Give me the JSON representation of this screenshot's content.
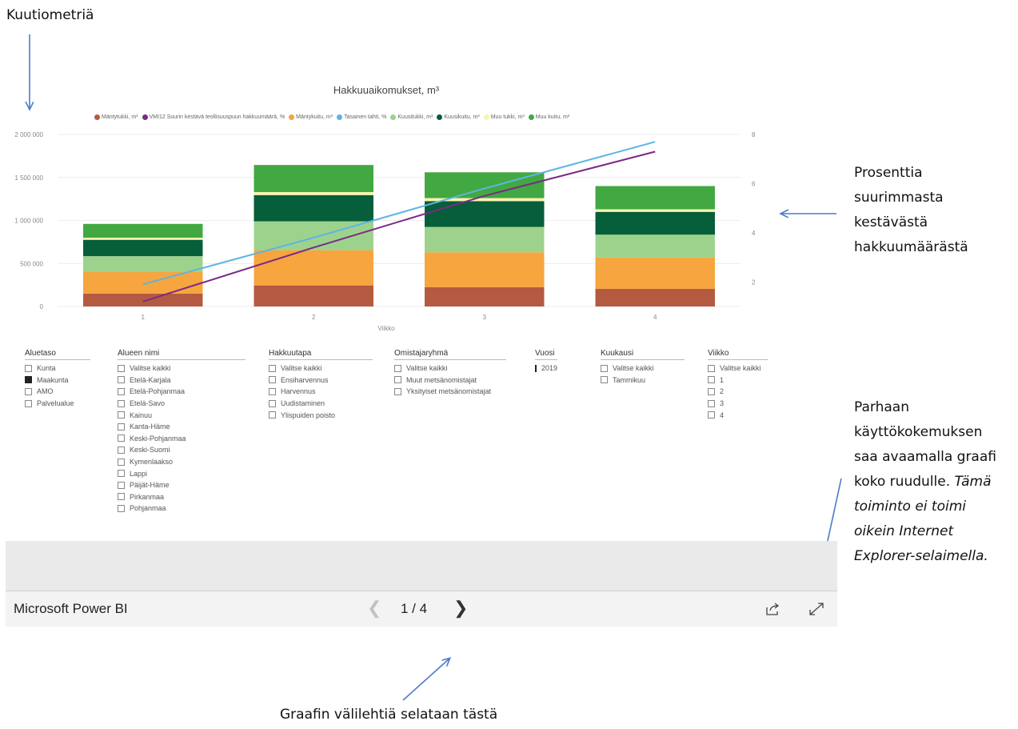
{
  "annotations": {
    "y_axis_note": "Kuutiometriä",
    "right_axis_note": [
      "Prosenttia",
      "suurimmasta",
      "kestävästä",
      "hakkuumäärästä"
    ],
    "fullscreen_note": [
      "Parhaan",
      "käyttökokemuksen",
      "saa avaamalla graafi",
      "koko ruudulle."
    ],
    "fullscreen_note_italic": [
      "Tämä",
      "toiminto ei toimi",
      "oikein Internet",
      "Explorer-selaimella."
    ],
    "tabs_note": "Graafin välilehtiä selataan tästä"
  },
  "chart_data": {
    "type": "bar",
    "title": "Hakkuuaikomukset, m³",
    "xlabel": "Viikko",
    "ylabel": "",
    "categories": [
      "1",
      "2",
      "3",
      "4"
    ],
    "ylim": [
      0,
      2000000
    ],
    "y2lim": [
      1,
      8
    ],
    "y_ticks": [
      "0",
      "500 000",
      "1 000 000",
      "1 500 000",
      "2 000 000"
    ],
    "y2_ticks": [
      "2",
      "4",
      "6",
      "8"
    ],
    "stacked": true,
    "legend_position": "top",
    "series": [
      {
        "name": "Mäntytukki, m³",
        "type": "bar",
        "color": "#b45a40",
        "values": [
          150000,
          245000,
          225000,
          205000
        ]
      },
      {
        "name": "Mäntykuitu, m³",
        "type": "bar",
        "color": "#f6a53f",
        "values": [
          250000,
          410000,
          405000,
          365000
        ]
      },
      {
        "name": "Kuusitukki, m³",
        "type": "bar",
        "color": "#9dd28d",
        "values": [
          185000,
          335000,
          295000,
          265000
        ]
      },
      {
        "name": "Kuusikuitu, m³",
        "type": "bar",
        "color": "#065e3a",
        "values": [
          190000,
          305000,
          300000,
          265000
        ]
      },
      {
        "name": "Muu tukki, m³",
        "type": "bar",
        "color": "#f7f3b0",
        "values": [
          25000,
          35000,
          35000,
          30000
        ]
      },
      {
        "name": "Muu kuitu, m³",
        "type": "bar",
        "color": "#42a842",
        "values": [
          160000,
          315000,
          300000,
          270000
        ]
      },
      {
        "name": "VMI12 Suurin kestävä teollisuuspuun hakkuumäärä, %",
        "type": "line",
        "axis": "right",
        "color": "#7b2a86",
        "values": [
          1.2,
          3.4,
          5.5,
          7.3
        ]
      },
      {
        "name": "Tasainen tahti, %",
        "type": "line",
        "axis": "right",
        "color": "#5db5e2",
        "values": [
          1.9,
          3.8,
          5.8,
          7.7
        ]
      }
    ],
    "legend_order": [
      "Mäntytukki, m³",
      "VMI12 Suurin kestävä teollisuuspuun hakkuumäärä, %",
      "Mäntykuitu, m³",
      "Tasainen tahti, %",
      "Kuusitukki, m³",
      "Kuusikuitu, m³",
      "Muu tukki, m³",
      "Muu kuitu, m³"
    ]
  },
  "slicers": [
    {
      "title": "Aluetaso",
      "items": [
        {
          "label": "Kunta",
          "checked": false
        },
        {
          "label": "Maakunta",
          "checked": true
        },
        {
          "label": "AMO",
          "checked": false
        },
        {
          "label": "Palvelualue",
          "checked": false
        }
      ]
    },
    {
      "title": "Alueen nimi",
      "items": [
        {
          "label": "Valitse kaikki",
          "checked": false
        },
        {
          "label": "Etelä-Karjala",
          "checked": false
        },
        {
          "label": "Etelä-Pohjanmaa",
          "checked": false
        },
        {
          "label": "Etelä-Savo",
          "checked": false
        },
        {
          "label": "Kainuu",
          "checked": false
        },
        {
          "label": "Kanta-Häme",
          "checked": false
        },
        {
          "label": "Keski-Pohjanmaa",
          "checked": false
        },
        {
          "label": "Keski-Suomi",
          "checked": false
        },
        {
          "label": "Kymenlaakso",
          "checked": false
        },
        {
          "label": "Lappi",
          "checked": false
        },
        {
          "label": "Päijät-Häme",
          "checked": false
        },
        {
          "label": "Pirkanmaa",
          "checked": false
        },
        {
          "label": "Pohjanmaa",
          "checked": false
        }
      ]
    },
    {
      "title": "Hakkuutapa",
      "items": [
        {
          "label": "Valitse kaikki",
          "checked": false
        },
        {
          "label": "Ensiharvennus",
          "checked": false
        },
        {
          "label": "Harvennus",
          "checked": false
        },
        {
          "label": "Uudistaminen",
          "checked": false
        },
        {
          "label": "Ylispuiden poisto",
          "checked": false
        }
      ]
    },
    {
      "title": "Omistajaryhmä",
      "items": [
        {
          "label": "Valitse kaikki",
          "checked": false
        },
        {
          "label": "Muut metsänomistajat",
          "checked": false
        },
        {
          "label": "Yksityiset metsänomistajat",
          "checked": false
        }
      ]
    },
    {
      "title": "Vuosi",
      "items": [
        {
          "label": "2019",
          "checked": true
        }
      ]
    },
    {
      "title": "Kuukausi",
      "items": [
        {
          "label": "Valitse kaikki",
          "checked": false
        },
        {
          "label": "Tammikuu",
          "checked": false
        }
      ]
    },
    {
      "title": "Viikko",
      "items": [
        {
          "label": "Valitse kaikki",
          "checked": false
        },
        {
          "label": "1",
          "checked": false
        },
        {
          "label": "2",
          "checked": false
        },
        {
          "label": "3",
          "checked": false
        },
        {
          "label": "4",
          "checked": false
        }
      ]
    }
  ],
  "footer": {
    "brand": "Microsoft Power BI",
    "prev_icon": "chevron-left-icon",
    "page_indicator": "1 / 4",
    "next_icon": "chevron-right-icon",
    "share_icon": "share-icon",
    "fullscreen_icon": "fullscreen-icon"
  }
}
